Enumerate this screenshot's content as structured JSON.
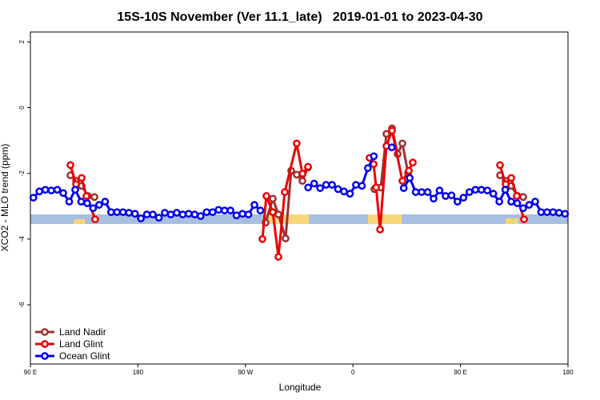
{
  "chart_data": {
    "type": "line",
    "title": "15S-10S November (Ver 11.1_late)   2019-01-01 to 2023-04-30",
    "x_label": "Longitude",
    "y_label": "XCO2 - MLO trend (ppm)",
    "xlim": [
      90,
      540
    ],
    "xticks": [
      {
        "value": 90,
        "label": "90 E"
      },
      {
        "value": 180,
        "label": "180"
      },
      {
        "value": 270,
        "label": "90 W"
      },
      {
        "value": 360,
        "label": "0"
      },
      {
        "value": 450,
        "label": "90 E"
      },
      {
        "value": 540,
        "label": "180"
      }
    ],
    "ylim": [
      -7.8,
      2.3
    ],
    "yticks": [
      -6,
      -4,
      -2,
      0,
      2
    ],
    "legend": "bottom-left",
    "series": [
      {
        "name": "Land Nadir",
        "color": "#a03030",
        "x": [
          123.5,
          128.2,
          132.9,
          138.2,
          143.6,
          215,
          286.9,
          292.9,
          297.6,
          303.6,
          308.3,
          312.9,
          317.7,
          322.4,
          350,
          377.9,
          383.3,
          388.0,
          392.7,
          397.4,
          401.4,
          406.1,
          445,
          483.1,
          487.8,
          492.5,
          497.8,
          502.5
        ],
        "values": [
          -2.06,
          -2.23,
          -2.38,
          -2.69,
          -2.72,
          null,
          -3.5,
          -2.77,
          -3.25,
          -3.98,
          -1.92,
          -2.04,
          -2.23,
          -1.82,
          null,
          -2.48,
          -2.43,
          -0.8,
          -0.63,
          -1.41,
          -1.09,
          -1.99,
          null,
          -2.06,
          -2.23,
          -2.38,
          -2.69,
          -2.72
        ]
      },
      {
        "name": "Land Glint",
        "color": "#ee0000",
        "x": [
          123.5,
          128.2,
          132.9,
          136.9,
          144.2,
          215,
          284.2,
          287.5,
          292.9,
          297.6,
          302.9,
          312.9,
          317.7,
          322.4,
          350,
          373.9,
          377.3,
          379.4,
          382.7,
          388.0,
          392.7,
          401.4,
          406.8,
          410.1,
          445,
          483.1,
          487.8,
          492.5,
          497.1,
          503.2
        ],
        "values": [
          -1.75,
          -2.33,
          -2.14,
          -2.69,
          -3.4,
          null,
          -4.0,
          -2.69,
          -3.18,
          -4.54,
          -2.57,
          -1.09,
          -2.01,
          -1.8,
          null,
          -1.53,
          -1.72,
          -2.43,
          -3.71,
          -1.17,
          -0.7,
          -2.23,
          -1.92,
          -1.67,
          null,
          -1.75,
          -2.33,
          -2.14,
          -2.69,
          -3.4
        ]
      },
      {
        "name": "Ocean Glint",
        "color": "#0000ee",
        "x": [
          92.5,
          97.5,
          102.5,
          107.5,
          112.5,
          117.5,
          122.5,
          127.5,
          132.5,
          137.5,
          142.5,
          147.5,
          152.5,
          157.5,
          162.5,
          167.5,
          172.5,
          177.5,
          182.5,
          187.5,
          192.5,
          197.5,
          202.5,
          207.5,
          212.5,
          217.5,
          222.5,
          227.5,
          232.5,
          237.5,
          242.5,
          247.5,
          252.5,
          257.5,
          262.5,
          267.5,
          272.5,
          277.5,
          282.5,
          287.5,
          292.5,
          297.5,
          302.5,
          307.5,
          312.5,
          317.5,
          322.5,
          327.5,
          332.5,
          337.5,
          342.5,
          347.5,
          352.5,
          357.5,
          362.5,
          367.5,
          372.5,
          377.5,
          382.5,
          387.5,
          392.5,
          397.5,
          402.5,
          407.5,
          412.5,
          417.5,
          422.5,
          427.5,
          432.5,
          437.5,
          442.5,
          447.5,
          452.5,
          457.5,
          462.5,
          467.5,
          472.5,
          477.5,
          482.5,
          487.5,
          492.5,
          497.5,
          502.5,
          507.5,
          512.5,
          517.5,
          522.5,
          527.5,
          532.5,
          537.5
        ],
        "values": [
          -2.74,
          -2.55,
          -2.5,
          -2.52,
          -2.5,
          -2.6,
          -2.86,
          -2.5,
          -2.86,
          -2.91,
          -3.06,
          -2.96,
          -2.86,
          -3.18,
          -3.18,
          -3.18,
          -3.2,
          -3.23,
          -3.37,
          -3.25,
          -3.25,
          -3.35,
          -3.2,
          -3.25,
          -3.2,
          -3.25,
          -3.23,
          -3.25,
          -3.3,
          -3.18,
          -3.18,
          -3.11,
          -3.13,
          -3.13,
          -3.28,
          -3.23,
          -3.25,
          -2.96,
          -3.13,
          null,
          null,
          null,
          null,
          null,
          null,
          null,
          -2.43,
          -2.31,
          -2.45,
          -2.35,
          -2.35,
          -2.48,
          -2.55,
          -2.62,
          -2.35,
          -2.38,
          -1.84,
          -1.48,
          null,
          null,
          -1.21,
          null,
          -2.45,
          -2.14,
          -2.57,
          -2.57,
          -2.57,
          -2.77,
          -2.52,
          -2.69,
          -2.67,
          -2.86,
          -2.74,
          -2.57,
          -2.5,
          -2.5,
          -2.52,
          -2.62,
          -2.86,
          -2.5,
          -2.86,
          -2.91,
          -3.06,
          -2.96,
          -2.86,
          -3.18,
          -3.18,
          -3.18,
          -3.2,
          -3.23
        ]
      }
    ]
  }
}
